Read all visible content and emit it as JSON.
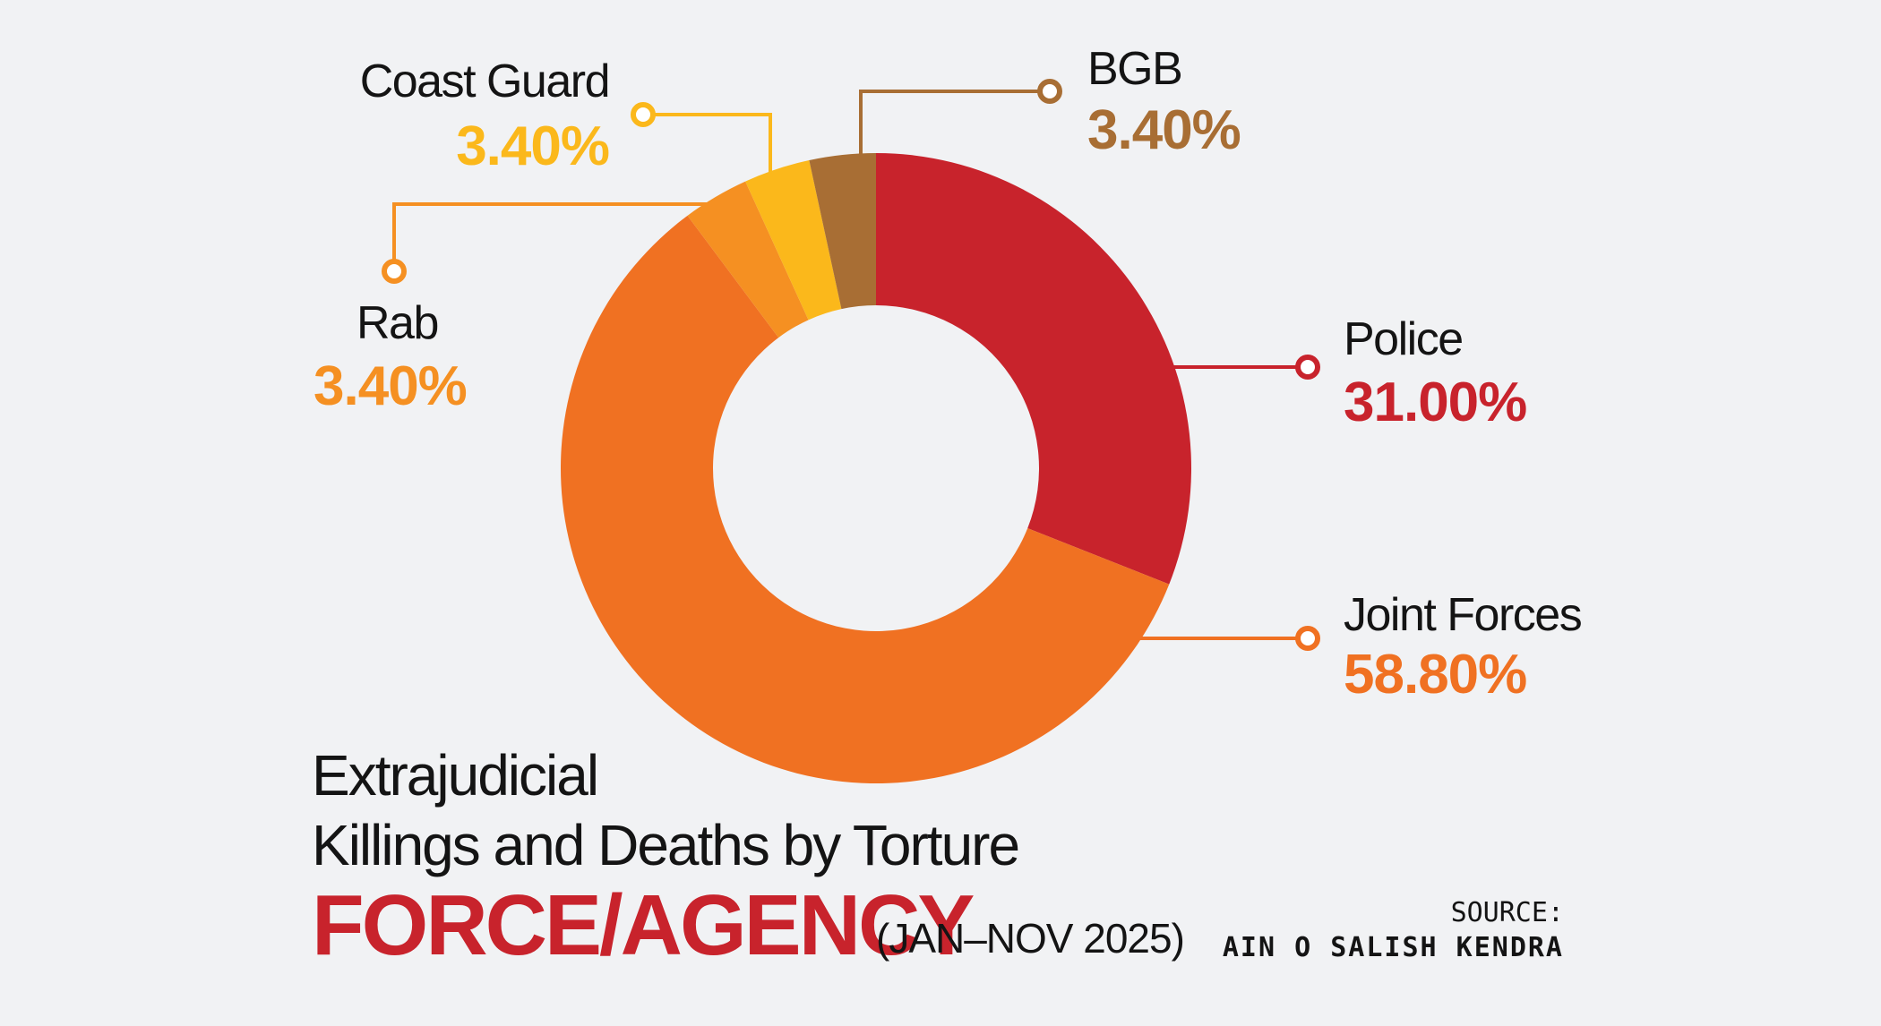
{
  "chart_data": {
    "type": "pie",
    "donut": true,
    "categories": [
      "Police",
      "Joint Forces",
      "Rab",
      "Coast Guard",
      "BGB"
    ],
    "values": [
      31.0,
      58.8,
      3.4,
      3.4,
      3.4
    ],
    "value_labels": [
      "31.00%",
      "58.80%",
      "3.40%",
      "3.40%",
      "3.40%"
    ],
    "colors": [
      "#c8232c",
      "#f07122",
      "#f59022",
      "#fbb81b",
      "#a86e34"
    ],
    "title_line1": "Extrajudicial",
    "title_line2": "Killings and Deaths by Torture",
    "title_main": "FORCE/AGENCY",
    "period": "(JAN–NOV 2025)"
  },
  "source": {
    "label": "SOURCE:",
    "name": "AIN O SALISH KENDRA"
  }
}
